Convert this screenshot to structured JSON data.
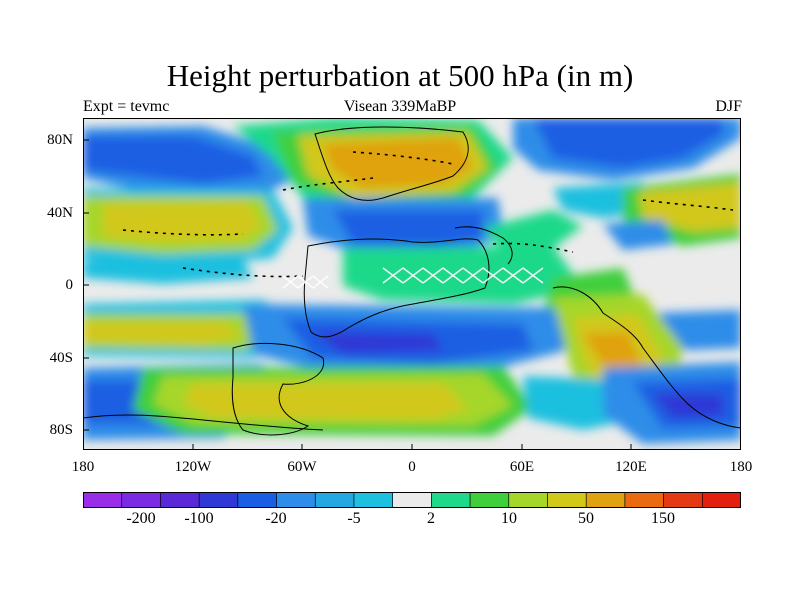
{
  "figure": {
    "title": "Height perturbation at 500 hPa (in m)",
    "left_subtitle": "Expt = tevmc",
    "center_subtitle": "Visean 339MaBP",
    "right_subtitle": "DJF"
  },
  "axes": {
    "lat_labels": [
      "80N",
      "40N",
      "0",
      "40S",
      "80S"
    ],
    "lon_labels": [
      "180",
      "120W",
      "60W",
      "0",
      "60E",
      "120E",
      "180"
    ]
  },
  "colorbar": {
    "colors": [
      "#9a2de8",
      "#7b2be2",
      "#5a2ad8",
      "#2e39d6",
      "#1a5ee3",
      "#2d8de8",
      "#24a8e2",
      "#1ec0df",
      "#ebebeb",
      "#1fd98a",
      "#3fcf3c",
      "#a6d62a",
      "#d2c81a",
      "#e0a210",
      "#ea6a10",
      "#e33a14",
      "#e32010"
    ],
    "labels": [
      "-200",
      "-100",
      "-20",
      "-5",
      "2",
      "10",
      "50",
      "150"
    ]
  }
}
